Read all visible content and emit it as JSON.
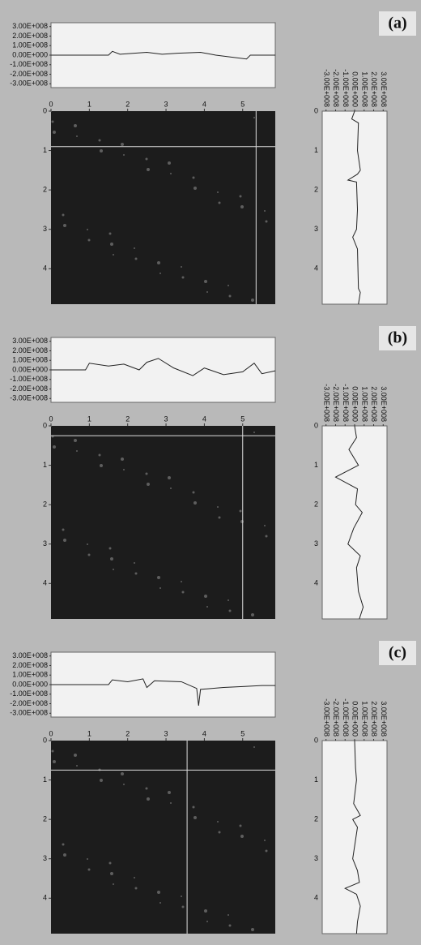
{
  "panels": [
    {
      "label": "(a)",
      "cursor_x": 5.35,
      "cursor_y": 0.9,
      "image": {
        "xlim": [
          0,
          5.85
        ],
        "xticks": [
          0,
          1,
          2,
          3,
          4,
          5
        ],
        "ylim": [
          0,
          4.9
        ],
        "yticks": [
          0,
          1,
          2,
          3,
          4
        ]
      },
      "top_profile": {
        "ylim": [
          -340000000,
          340000000
        ],
        "yticks": [
          {
            "value": 300000000,
            "label": "3.00E+008"
          },
          {
            "value": 200000000,
            "label": "2.00E+008"
          },
          {
            "value": 100000000,
            "label": "1.00E+008"
          },
          {
            "value": 0,
            "label": "0.00E+000"
          },
          {
            "value": -100000000,
            "label": "-1.00E+008"
          },
          {
            "value": -200000000,
            "label": "-2.00E+008"
          },
          {
            "value": -300000000,
            "label": "-3.00E+008"
          }
        ],
        "x": [
          0,
          1.5,
          1.6,
          1.8,
          2.5,
          2.9,
          3.3,
          3.9,
          4.3,
          5.1,
          5.2,
          5.85
        ],
        "values": [
          0,
          0,
          40000000,
          10000000,
          30000000,
          10000000,
          20000000,
          30000000,
          0,
          -40000000,
          0,
          0
        ]
      },
      "right_profile": {
        "xlim": [
          -340000000,
          340000000
        ],
        "xticks": [
          {
            "value": -300000000,
            "label": "-3.00E+008"
          },
          {
            "value": -200000000,
            "label": "-2.00E+008"
          },
          {
            "value": -100000000,
            "label": "-1.00E+008"
          },
          {
            "value": 0,
            "label": "0.00E+000"
          },
          {
            "value": 100000000,
            "label": "1.00E+008"
          },
          {
            "value": 200000000,
            "label": "2.00E+008"
          },
          {
            "value": 300000000,
            "label": "3.00E+008"
          }
        ],
        "y": [
          0,
          0.2,
          0.3,
          1.0,
          1.5,
          1.6,
          1.75,
          1.8,
          2.5,
          3.0,
          3.2,
          3.5,
          4.5,
          4.6,
          4.9
        ],
        "values": [
          0,
          -30000000,
          40000000,
          30000000,
          60000000,
          30000000,
          -70000000,
          20000000,
          30000000,
          20000000,
          -20000000,
          30000000,
          40000000,
          60000000,
          40000000
        ]
      }
    },
    {
      "label": "(b)",
      "cursor_x": 5.0,
      "cursor_y": 0.25,
      "image": {
        "xlim": [
          0,
          5.85
        ],
        "xticks": [
          0,
          1,
          2,
          3,
          4,
          5
        ],
        "ylim": [
          0,
          4.9
        ],
        "yticks": [
          0,
          1,
          2,
          3,
          4
        ]
      },
      "top_profile": {
        "ylim": [
          -340000000,
          340000000
        ],
        "yticks": [
          {
            "value": 300000000,
            "label": "3.00E+008"
          },
          {
            "value": 200000000,
            "label": "2.00E+008"
          },
          {
            "value": 100000000,
            "label": "1.00E+008"
          },
          {
            "value": 0,
            "label": "0.00E+000"
          },
          {
            "value": -100000000,
            "label": "-1.00E+008"
          },
          {
            "value": -200000000,
            "label": "-2.00E+008"
          },
          {
            "value": -300000000,
            "label": "-3.00E+008"
          }
        ],
        "x": [
          0,
          0.9,
          1.0,
          1.5,
          1.9,
          2.3,
          2.5,
          2.8,
          3.2,
          3.7,
          4.0,
          4.5,
          5.0,
          5.3,
          5.5,
          5.85
        ],
        "values": [
          0,
          0,
          70000000,
          40000000,
          60000000,
          0,
          80000000,
          120000000,
          20000000,
          -60000000,
          20000000,
          -50000000,
          -20000000,
          70000000,
          -40000000,
          -10000000
        ]
      },
      "right_profile": {
        "xlim": [
          -340000000,
          340000000
        ],
        "xticks": [
          {
            "value": -300000000,
            "label": "-3.00E+008"
          },
          {
            "value": -200000000,
            "label": "-2.00E+008"
          },
          {
            "value": -100000000,
            "label": "-1.00E+008"
          },
          {
            "value": 0,
            "label": "0.00E+000"
          },
          {
            "value": 100000000,
            "label": "1.00E+008"
          },
          {
            "value": 200000000,
            "label": "2.00E+008"
          },
          {
            "value": 300000000,
            "label": "3.00E+008"
          }
        ],
        "y": [
          0,
          0.3,
          0.6,
          1.0,
          1.3,
          1.6,
          2.0,
          2.2,
          2.6,
          3.0,
          3.3,
          3.6,
          4.2,
          4.6,
          4.9
        ],
        "values": [
          0,
          20000000,
          -60000000,
          40000000,
          -200000000,
          30000000,
          10000000,
          80000000,
          -10000000,
          -70000000,
          60000000,
          20000000,
          40000000,
          90000000,
          50000000
        ]
      }
    },
    {
      "label": "(c)",
      "cursor_x": 3.55,
      "cursor_y": 0.75,
      "image": {
        "xlim": [
          0,
          5.85
        ],
        "xticks": [
          0,
          1,
          2,
          3,
          4,
          5
        ],
        "ylim": [
          0,
          4.9
        ],
        "yticks": [
          0,
          1,
          2,
          3,
          4
        ]
      },
      "top_profile": {
        "ylim": [
          -340000000,
          340000000
        ],
        "yticks": [
          {
            "value": 300000000,
            "label": "3.00E+008"
          },
          {
            "value": 200000000,
            "label": "2.00E+008"
          },
          {
            "value": 100000000,
            "label": "1.00E+008"
          },
          {
            "value": 0,
            "label": "0.00E+000"
          },
          {
            "value": -100000000,
            "label": "-1.00E+008"
          },
          {
            "value": -200000000,
            "label": "-2.00E+008"
          },
          {
            "value": -300000000,
            "label": "-3.00E+008"
          }
        ],
        "x": [
          0,
          1.5,
          1.6,
          2.0,
          2.4,
          2.5,
          2.7,
          3.4,
          3.8,
          3.85,
          3.9,
          4.5,
          5.0,
          5.5,
          5.85
        ],
        "values": [
          0,
          0,
          50000000,
          30000000,
          60000000,
          -30000000,
          40000000,
          30000000,
          -40000000,
          -220000000,
          -50000000,
          -30000000,
          -20000000,
          -10000000,
          -10000000
        ]
      },
      "right_profile": {
        "xlim": [
          -340000000,
          340000000
        ],
        "xticks": [
          {
            "value": -300000000,
            "label": "-3.00E+008"
          },
          {
            "value": -200000000,
            "label": "-2.00E+008"
          },
          {
            "value": -100000000,
            "label": "-1.00E+008"
          },
          {
            "value": 0,
            "label": "0.00E+000"
          },
          {
            "value": 100000000,
            "label": "1.00E+008"
          },
          {
            "value": 200000000,
            "label": "2.00E+008"
          },
          {
            "value": 300000000,
            "label": "3.00E+008"
          }
        ],
        "y": [
          0,
          0.7,
          1.0,
          1.6,
          1.9,
          2.0,
          2.2,
          3.0,
          3.3,
          3.6,
          3.75,
          3.9,
          4.2,
          4.6,
          4.9
        ],
        "values": [
          0,
          10000000,
          20000000,
          -10000000,
          60000000,
          -20000000,
          30000000,
          -20000000,
          30000000,
          50000000,
          -100000000,
          20000000,
          60000000,
          30000000,
          20000000
        ]
      }
    }
  ]
}
